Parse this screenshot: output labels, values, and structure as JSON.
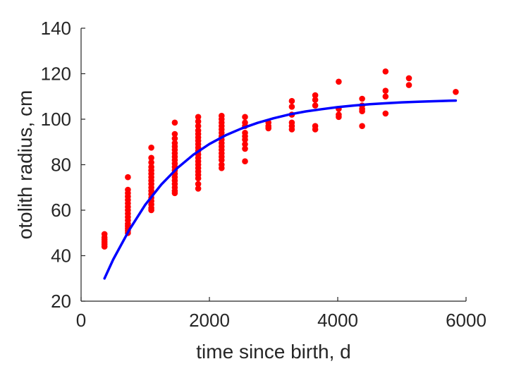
{
  "chart_data": {
    "type": "scatter",
    "title": "",
    "xlabel": "time since birth, d",
    "ylabel": "otolith radius, cm",
    "xlim": [
      0,
      6000
    ],
    "ylim": [
      20,
      140
    ],
    "xticks": [
      0,
      2000,
      4000,
      6000
    ],
    "yticks": [
      20,
      40,
      60,
      80,
      100,
      120,
      140
    ],
    "xtick_labels": [
      "0",
      "2000",
      "4000",
      "6000"
    ],
    "ytick_labels": [
      "20",
      "40",
      "60",
      "80",
      "100",
      "120",
      "140"
    ],
    "grid": false,
    "legend": "none",
    "series": [
      {
        "kind": "scatter",
        "color": "#ff0000",
        "points": [
          [
            365,
            49.5
          ],
          [
            365,
            48
          ],
          [
            365,
            47
          ],
          [
            365,
            46
          ],
          [
            365,
            45
          ],
          [
            365,
            44
          ],
          [
            730,
            74.5
          ],
          [
            730,
            69
          ],
          [
            730,
            67.5
          ],
          [
            730,
            66
          ],
          [
            730,
            64.5
          ],
          [
            730,
            63
          ],
          [
            730,
            61.5
          ],
          [
            730,
            60
          ],
          [
            730,
            58.5
          ],
          [
            730,
            57
          ],
          [
            730,
            55.5
          ],
          [
            730,
            54
          ],
          [
            730,
            53
          ],
          [
            730,
            52
          ],
          [
            730,
            51
          ],
          [
            730,
            50
          ],
          [
            1095,
            87.5
          ],
          [
            1095,
            83
          ],
          [
            1095,
            81
          ],
          [
            1095,
            79
          ],
          [
            1095,
            77.5
          ],
          [
            1095,
            76
          ],
          [
            1095,
            74.5
          ],
          [
            1095,
            73
          ],
          [
            1095,
            71.5
          ],
          [
            1095,
            70
          ],
          [
            1095,
            68.5
          ],
          [
            1095,
            67
          ],
          [
            1095,
            65.5
          ],
          [
            1095,
            64
          ],
          [
            1095,
            62.5
          ],
          [
            1095,
            61
          ],
          [
            1095,
            60
          ],
          [
            1460,
            98.5
          ],
          [
            1460,
            93.5
          ],
          [
            1460,
            91.5
          ],
          [
            1460,
            89.5
          ],
          [
            1460,
            88
          ],
          [
            1460,
            86.5
          ],
          [
            1460,
            85
          ],
          [
            1460,
            83.5
          ],
          [
            1460,
            82
          ],
          [
            1460,
            80.5
          ],
          [
            1460,
            79
          ],
          [
            1460,
            77.5
          ],
          [
            1460,
            76
          ],
          [
            1460,
            74.5
          ],
          [
            1460,
            73
          ],
          [
            1460,
            71.5
          ],
          [
            1460,
            70
          ],
          [
            1460,
            68.5
          ],
          [
            1460,
            67.5
          ],
          [
            1825,
            101
          ],
          [
            1825,
            99
          ],
          [
            1825,
            97
          ],
          [
            1825,
            95
          ],
          [
            1825,
            93.5
          ],
          [
            1825,
            92
          ],
          [
            1825,
            90.5
          ],
          [
            1825,
            89
          ],
          [
            1825,
            87.5
          ],
          [
            1825,
            86
          ],
          [
            1825,
            84.5
          ],
          [
            1825,
            83
          ],
          [
            1825,
            81.5
          ],
          [
            1825,
            80
          ],
          [
            1825,
            78.5
          ],
          [
            1825,
            77
          ],
          [
            1825,
            75.5
          ],
          [
            1825,
            74
          ],
          [
            1825,
            71.5
          ],
          [
            1825,
            69.5
          ],
          [
            2190,
            101.5
          ],
          [
            2190,
            100
          ],
          [
            2190,
            98.5
          ],
          [
            2190,
            97
          ],
          [
            2190,
            95.5
          ],
          [
            2190,
            94
          ],
          [
            2190,
            92.5
          ],
          [
            2190,
            91
          ],
          [
            2190,
            89.5
          ],
          [
            2190,
            88
          ],
          [
            2190,
            86.5
          ],
          [
            2190,
            85
          ],
          [
            2190,
            83.5
          ],
          [
            2190,
            82
          ],
          [
            2190,
            80
          ],
          [
            2190,
            78.5
          ],
          [
            2555,
            101
          ],
          [
            2555,
            98.5
          ],
          [
            2555,
            97
          ],
          [
            2555,
            94
          ],
          [
            2555,
            92.5
          ],
          [
            2555,
            91
          ],
          [
            2555,
            89
          ],
          [
            2555,
            87
          ],
          [
            2555,
            81.5
          ],
          [
            2920,
            98.5
          ],
          [
            2920,
            97
          ],
          [
            2920,
            96
          ],
          [
            3285,
            108
          ],
          [
            3285,
            105.5
          ],
          [
            3285,
            102
          ],
          [
            3285,
            98.5
          ],
          [
            3285,
            97
          ],
          [
            3285,
            95.5
          ],
          [
            3650,
            110.5
          ],
          [
            3650,
            108.5
          ],
          [
            3650,
            106
          ],
          [
            3650,
            97
          ],
          [
            3650,
            95.5
          ],
          [
            4015,
            116.5
          ],
          [
            4015,
            104.5
          ],
          [
            4015,
            102
          ],
          [
            4015,
            101
          ],
          [
            4380,
            109
          ],
          [
            4380,
            106
          ],
          [
            4380,
            104.5
          ],
          [
            4380,
            103.5
          ],
          [
            4380,
            97
          ],
          [
            4745,
            121
          ],
          [
            4745,
            112.5
          ],
          [
            4745,
            110
          ],
          [
            4745,
            102.5
          ],
          [
            5110,
            118
          ],
          [
            5110,
            115
          ],
          [
            5840,
            112
          ]
        ]
      },
      {
        "kind": "line",
        "color": "#0000ff",
        "x": [
          365,
          500,
          750,
          1000,
          1250,
          1500,
          1750,
          2000,
          2250,
          2500,
          2750,
          3000,
          3250,
          3500,
          3750,
          4000,
          4250,
          4500,
          4750,
          5000,
          5250,
          5500,
          5840
        ],
        "y": [
          30,
          38.3,
          51.3,
          62.4,
          71.3,
          78.5,
          84.4,
          89.1,
          92.9,
          95.9,
          98.4,
          100.4,
          102.1,
          103.4,
          104.4,
          105.3,
          106,
          106.6,
          107,
          107.4,
          107.7,
          107.9,
          108.2
        ]
      }
    ]
  }
}
